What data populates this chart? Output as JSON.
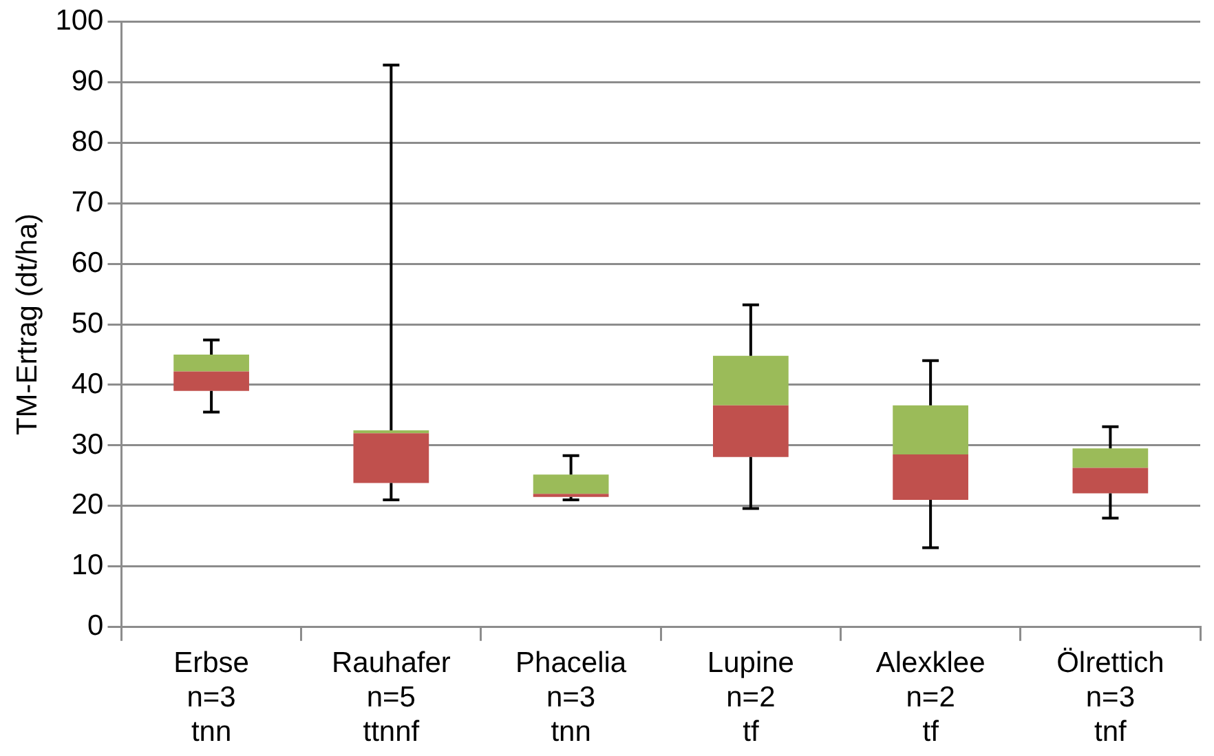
{
  "chart_data": {
    "type": "box",
    "ylabel": "TM-Ertrag (dt/ha)",
    "categories": [
      "Erbse\nn=3\ntnn",
      "Rauhafer\nn=5\nttnnf",
      "Phacelia\nn=3\ntnn",
      "Lupine\nn=2\ntf",
      "Alexklee\nn=2\ntf",
      "Ölrettich\nn=3\ntnf"
    ],
    "colors": [
      [
        "#c0504d",
        "#9bbb59"
      ],
      [
        "#c0504d",
        "#9bbb59"
      ],
      [
        "#c0504d",
        "#9bbb59"
      ],
      [
        "#c0504d",
        "#9bbb59"
      ],
      [
        "#c0504d",
        "#9bbb59"
      ],
      [
        "#c0504d",
        "#9bbb59"
      ]
    ],
    "boxes": [
      {
        "low": 35.5,
        "q1": 39,
        "median": 42.2,
        "q3": 45,
        "high": 47.4
      },
      {
        "low": 21,
        "q1": 23.8,
        "median": 32,
        "q3": 32.5,
        "high": 92.8
      },
      {
        "low": 21,
        "q1": 21.5,
        "median": 22,
        "q3": 25.2,
        "high": 28.3
      },
      {
        "low": 19.6,
        "q1": 28.1,
        "median": 36.6,
        "q3": 44.8,
        "high": 53.2
      },
      {
        "low": 13.1,
        "q1": 21,
        "median": 28.5,
        "q3": 36.6,
        "high": 44
      },
      {
        "low": 18,
        "q1": 22.1,
        "median": 26.3,
        "q3": 29.5,
        "high": 33.1
      }
    ],
    "ylim": [
      0,
      100
    ],
    "yticks": [
      0,
      10,
      20,
      30,
      40,
      50,
      60,
      70,
      80,
      90,
      100
    ],
    "grid": "y",
    "legend": false
  }
}
